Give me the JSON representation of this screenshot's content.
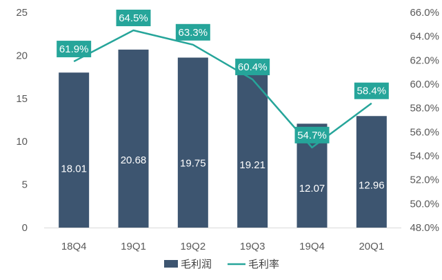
{
  "chart_data": {
    "type": "bar",
    "categories": [
      "18Q4",
      "19Q1",
      "19Q2",
      "19Q3",
      "19Q4",
      "20Q1"
    ],
    "series": [
      {
        "name": "毛利润",
        "type": "bar",
        "axis": "left",
        "color": "#3d5570",
        "values": [
          18.01,
          20.68,
          19.75,
          19.21,
          12.07,
          12.96
        ],
        "labels": [
          "18.01",
          "20.68",
          "19.75",
          "19.21",
          "12.07",
          "12.96"
        ]
      },
      {
        "name": "毛利率",
        "type": "line",
        "axis": "right",
        "color": "#26a59a",
        "values": [
          61.9,
          64.5,
          63.3,
          60.4,
          54.7,
          58.4
        ],
        "labels": [
          "61.9%",
          "64.5%",
          "63.3%",
          "60.4%",
          "54.7%",
          "58.4%"
        ]
      }
    ],
    "y_left": {
      "min": 0,
      "max": 25,
      "ticks": [
        0,
        5,
        10,
        15,
        20,
        25
      ],
      "tick_labels": [
        "0",
        "5",
        "10",
        "15",
        "20",
        "25"
      ]
    },
    "y_right": {
      "min": 48,
      "max": 66,
      "ticks": [
        48,
        50,
        52,
        54,
        56,
        58,
        60,
        62,
        64,
        66
      ],
      "tick_labels": [
        "48.0%",
        "50.0%",
        "52.0%",
        "54.0%",
        "56.0%",
        "58.0%",
        "60.0%",
        "62.0%",
        "64.0%",
        "66.0%"
      ]
    },
    "grid": false,
    "legend": {
      "position": "bottom-center",
      "entries": [
        "毛利润",
        "毛利率"
      ]
    }
  }
}
